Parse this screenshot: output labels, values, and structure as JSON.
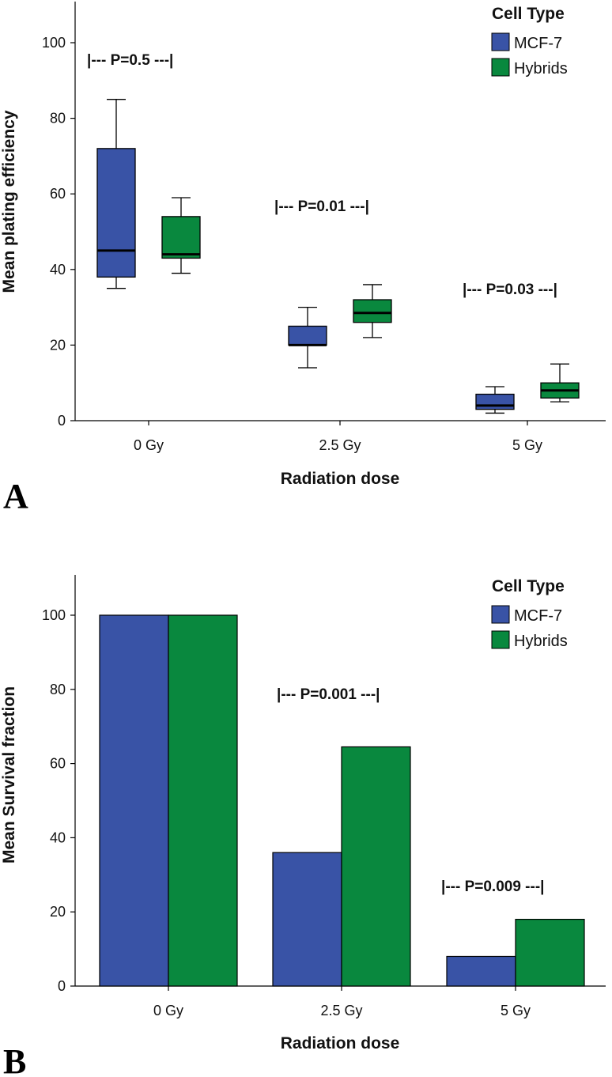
{
  "chart_data": [
    {
      "type": "box",
      "panel_label": "A",
      "xlabel": "Radiation dose",
      "ylabel": "Mean plating efficiency",
      "ylim": [
        0,
        110
      ],
      "yticks": [
        "0",
        "20",
        "40",
        "60",
        "80",
        "100"
      ],
      "ytick_values": [
        0,
        20,
        40,
        60,
        80,
        100
      ],
      "categories": [
        "0 Gy",
        "2.5 Gy",
        "5 Gy"
      ],
      "legend": {
        "title": "Cell Type",
        "position": "top-right"
      },
      "series": [
        {
          "name": "MCF-7",
          "color": "#3953a6",
          "boxes": [
            {
              "min": 35,
              "q1": 38,
              "median": 45,
              "q3": 72,
              "max": 85
            },
            {
              "min": 14,
              "q1": 20,
              "median": 20,
              "q3": 25,
              "max": 30
            },
            {
              "min": 2,
              "q1": 3,
              "median": 4,
              "q3": 7,
              "max": 9
            }
          ]
        },
        {
          "name": "Hybrids",
          "color": "#09883e",
          "boxes": [
            {
              "min": 39,
              "q1": 43,
              "median": 44,
              "q3": 54,
              "max": 59
            },
            {
              "min": 22,
              "q1": 26,
              "median": 28.5,
              "q3": 32,
              "max": 36
            },
            {
              "min": 5,
              "q1": 6,
              "median": 8,
              "q3": 10,
              "max": 15
            }
          ]
        }
      ],
      "annotations": [
        "|--- P=0.5 ---|",
        "|--- P=0.01 ---|",
        "|--- P=0.03 ---|"
      ]
    },
    {
      "type": "bar",
      "panel_label": "B",
      "xlabel": "Radiation dose",
      "ylabel": "Mean Survival fraction",
      "ylim": [
        0,
        110
      ],
      "yticks": [
        "0",
        "20",
        "40",
        "60",
        "80",
        "100"
      ],
      "ytick_values": [
        0,
        20,
        40,
        60,
        80,
        100
      ],
      "categories": [
        "0 Gy",
        "2.5 Gy",
        "5 Gy"
      ],
      "legend": {
        "title": "Cell Type",
        "position": "top-right"
      },
      "series": [
        {
          "name": "MCF-7",
          "color": "#3953a6",
          "values": [
            100,
            36,
            8
          ]
        },
        {
          "name": "Hybrids",
          "color": "#09883e",
          "values": [
            100,
            64.5,
            18
          ]
        }
      ],
      "annotations": [
        "|--- P=0.001 ---|",
        "|--- P=0.009 ---|"
      ]
    }
  ]
}
